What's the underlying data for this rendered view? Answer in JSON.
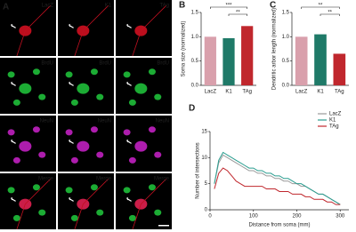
{
  "panel_a": {
    "letter": "A",
    "labels": [
      [
        "LacZ",
        "K1",
        "TAg"
      ],
      [
        "BrdU",
        "BrdU",
        "BrdU"
      ],
      [
        "NeuN",
        "NeuN",
        "NeuN"
      ],
      [
        "Merge",
        "Merge",
        "Merge"
      ]
    ]
  },
  "chart_data": [
    {
      "type": "bar",
      "panel": "B",
      "y_label": "Soma size (normalized)",
      "categories": [
        "LacZ",
        "K1",
        "TAg"
      ],
      "values": [
        1.0,
        0.97,
        1.22
      ],
      "colors": [
        "#d9a0ac",
        "#1f7a68",
        "#c0272d"
      ],
      "ylim": [
        0,
        1.5
      ],
      "yticks": [
        {
          "value": 0,
          "label": "0.0"
        },
        {
          "value": 0.5,
          "label": "0.5"
        },
        {
          "value": 1,
          "label": "1.0"
        },
        {
          "value": 1.5,
          "label": "1.5"
        }
      ],
      "annotations": [
        "***",
        "**"
      ]
    },
    {
      "type": "bar",
      "panel": "C",
      "y_label": "Dendritic arbor length (normalized)",
      "categories": [
        "LacZ",
        "K1",
        "TAg"
      ],
      "values": [
        1.0,
        1.05,
        0.65
      ],
      "colors": [
        "#d9a0ac",
        "#1f7a68",
        "#c0272d"
      ],
      "ylim": [
        0,
        1.5
      ],
      "yticks": [
        {
          "value": 0,
          "label": "0.0"
        },
        {
          "value": 0.5,
          "label": "0.5"
        },
        {
          "value": 1,
          "label": "1.0"
        },
        {
          "value": 1.5,
          "label": "1.5"
        }
      ],
      "annotations": [
        "**",
        "**"
      ]
    },
    {
      "type": "line",
      "panel": "D",
      "x_label": "Distance from soma (mm)",
      "y_label": "Number of intersections",
      "x": [
        10,
        20,
        30,
        40,
        50,
        60,
        70,
        80,
        90,
        100,
        110,
        120,
        130,
        140,
        150,
        160,
        170,
        180,
        190,
        200,
        210,
        220,
        230,
        240,
        250,
        260,
        270,
        280,
        290,
        300
      ],
      "series": [
        {
          "name": "LacZ",
          "color": "#9a9a9a",
          "values": [
            5,
            9,
            10.5,
            10,
            9.5,
            9,
            8.5,
            8,
            7.5,
            7.5,
            7,
            7,
            6.5,
            6.5,
            6,
            6,
            5.5,
            5.5,
            5,
            5,
            4.5,
            4.5,
            4,
            3.5,
            3,
            3,
            2.5,
            2,
            1.5,
            1
          ]
        },
        {
          "name": "K1",
          "color": "#2a9d8f",
          "values": [
            5,
            9.5,
            11,
            10.5,
            10,
            9.5,
            9,
            8.5,
            8,
            8,
            7.5,
            7.5,
            7,
            7,
            6.5,
            6.5,
            6,
            6,
            5.5,
            5,
            5,
            4.5,
            4,
            3.5,
            3,
            3,
            2.5,
            2,
            1.5,
            1
          ]
        },
        {
          "name": "TAg",
          "color": "#c0272d",
          "values": [
            4,
            7,
            8,
            7.5,
            6.5,
            5.5,
            5,
            4.5,
            4.5,
            4.5,
            4.5,
            4.5,
            4,
            4,
            4,
            3.5,
            3.5,
            3.5,
            3,
            3,
            3,
            2.5,
            2.5,
            2,
            2,
            2,
            1.5,
            1.5,
            1,
            1
          ]
        }
      ],
      "xlim": [
        0,
        320
      ],
      "xticks": [
        0,
        100,
        200,
        300
      ],
      "ylim": [
        0,
        15
      ],
      "yticks": [
        0,
        5,
        10,
        15
      ],
      "legend": "upper-right"
    }
  ]
}
